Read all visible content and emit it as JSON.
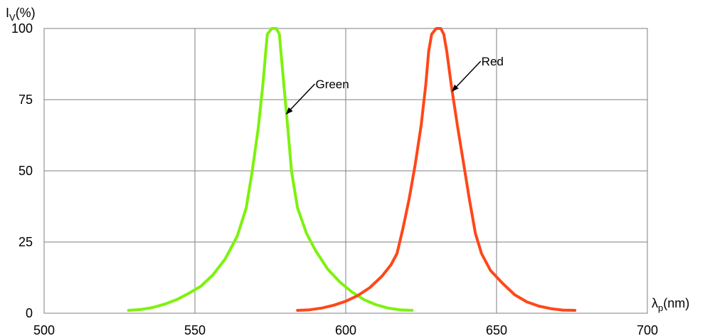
{
  "chart_data": {
    "type": "line",
    "title": "",
    "xlabel": "λ",
    "xlabel_subscript": "p",
    "xlabel_unit": "(nm)",
    "ylabel": "I",
    "ylabel_subscript": "V",
    "ylabel_unit": "(%)",
    "xlim": [
      500,
      700
    ],
    "ylim": [
      0,
      100
    ],
    "xticks": [
      500,
      550,
      600,
      650,
      700
    ],
    "yticks": [
      0,
      25,
      50,
      75,
      100
    ],
    "xtick_labels": [
      "500",
      "550",
      "600",
      "650",
      "700"
    ],
    "ytick_labels": [
      "0",
      "25",
      "50",
      "75",
      "100"
    ],
    "grid": true,
    "series": [
      {
        "name": "Green",
        "color": "#7df20d",
        "points": [
          [
            528,
            1
          ],
          [
            532,
            1.3
          ],
          [
            536,
            2
          ],
          [
            540,
            3.2
          ],
          [
            544,
            4.8
          ],
          [
            548,
            7
          ],
          [
            552,
            9.5
          ],
          [
            556,
            13.5
          ],
          [
            560,
            19
          ],
          [
            564,
            27
          ],
          [
            567,
            37
          ],
          [
            569,
            50
          ],
          [
            571,
            65
          ],
          [
            572.5,
            80
          ],
          [
            573.5,
            92
          ],
          [
            574,
            98
          ],
          [
            575.5,
            100
          ],
          [
            577,
            100
          ],
          [
            578,
            98
          ],
          [
            578.5,
            92
          ],
          [
            579.5,
            80
          ],
          [
            580.8,
            65
          ],
          [
            582,
            50
          ],
          [
            584,
            37
          ],
          [
            587,
            28
          ],
          [
            590,
            22
          ],
          [
            594,
            15.5
          ],
          [
            598,
            11
          ],
          [
            602,
            7.5
          ],
          [
            606,
            4.8
          ],
          [
            610,
            3
          ],
          [
            614,
            1.8
          ],
          [
            618,
            1.2
          ],
          [
            622,
            1
          ]
        ]
      },
      {
        "name": "Red",
        "color": "#ff4719",
        "points": [
          [
            584,
            1
          ],
          [
            588,
            1.2
          ],
          [
            592,
            1.8
          ],
          [
            596,
            2.8
          ],
          [
            600,
            4.2
          ],
          [
            604,
            6.2
          ],
          [
            608,
            9
          ],
          [
            612,
            13
          ],
          [
            615,
            17
          ],
          [
            617,
            21
          ],
          [
            619,
            30
          ],
          [
            621,
            40
          ],
          [
            623,
            52
          ],
          [
            625,
            66
          ],
          [
            626.5,
            80
          ],
          [
            627.5,
            92
          ],
          [
            628.5,
            98
          ],
          [
            630,
            100
          ],
          [
            631.5,
            100
          ],
          [
            632.5,
            98
          ],
          [
            633.5,
            92
          ],
          [
            635,
            80
          ],
          [
            637,
            66
          ],
          [
            639,
            53
          ],
          [
            641,
            40
          ],
          [
            643,
            28
          ],
          [
            645,
            21
          ],
          [
            648,
            15
          ],
          [
            652,
            10.5
          ],
          [
            656,
            6.5
          ],
          [
            660,
            4
          ],
          [
            664,
            2.5
          ],
          [
            668,
            1.6
          ],
          [
            672,
            1.1
          ],
          [
            676,
            1
          ]
        ]
      }
    ],
    "annotations": [
      {
        "text": "Green",
        "series": "Green",
        "arrow_to": [
          580.3,
          70
        ]
      },
      {
        "text": "Red",
        "series": "Red",
        "arrow_to": [
          635.3,
          78
        ]
      }
    ]
  }
}
